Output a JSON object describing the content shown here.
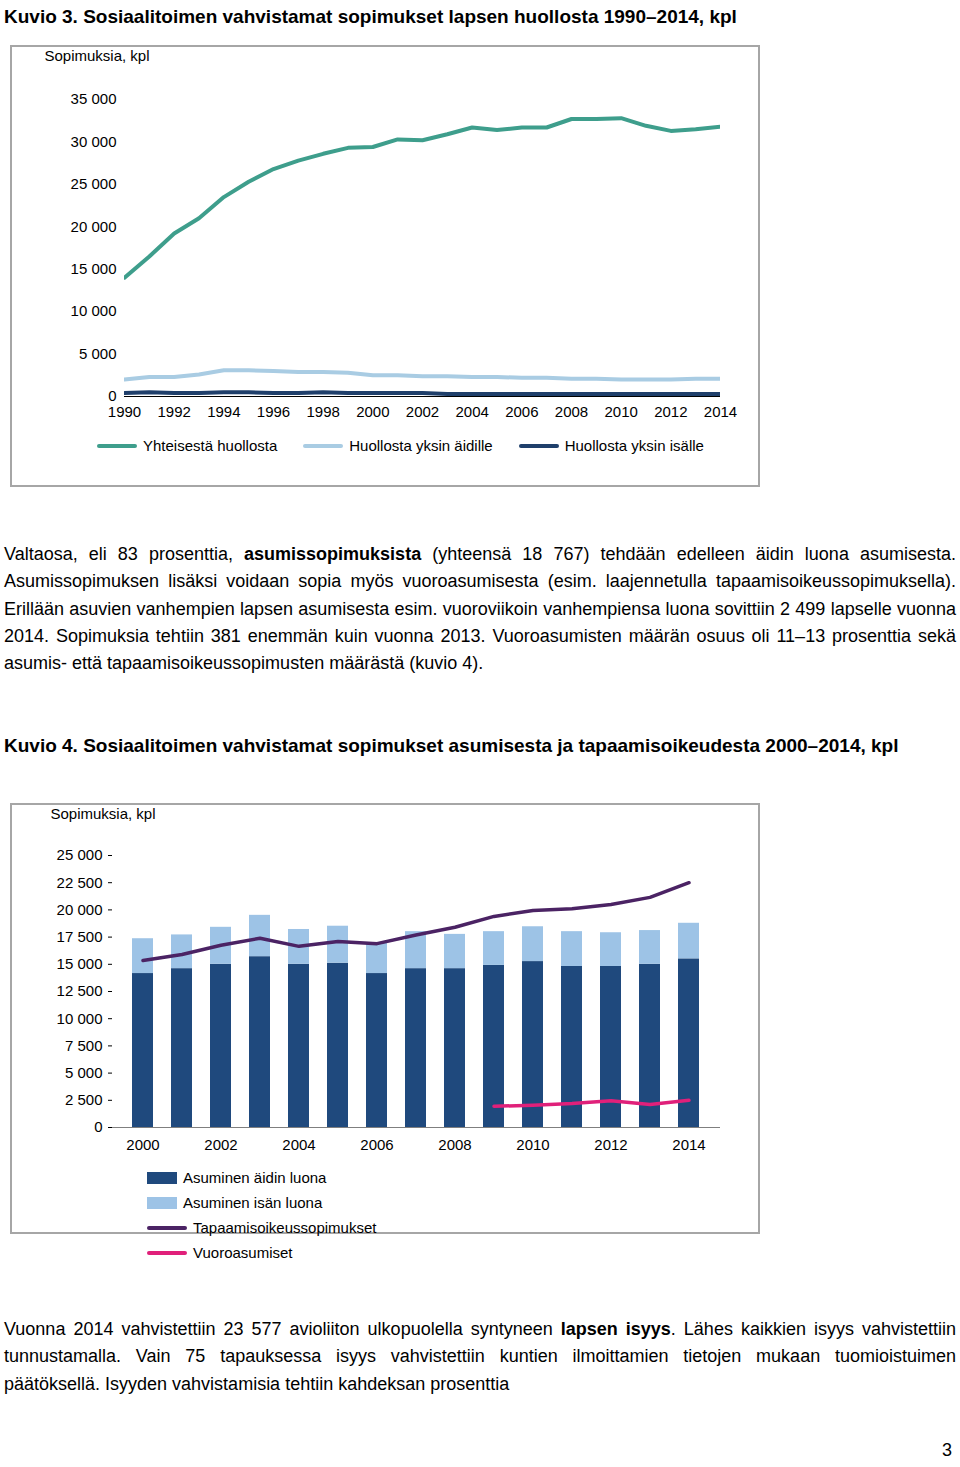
{
  "chart_data": [
    {
      "type": "line",
      "title": "Kuvio 3. Sosiaalitoimen vahvistamat sopimukset lapsen huollosta 1990–2014, kpl",
      "y_label": "Sopimuksia, kpl",
      "x": [
        1990,
        1991,
        1992,
        1993,
        1994,
        1995,
        1996,
        1997,
        1998,
        1999,
        2000,
        2001,
        2002,
        2003,
        2004,
        2005,
        2006,
        2007,
        2008,
        2009,
        2010,
        2011,
        2012,
        2013,
        2014
      ],
      "xlim": [
        1990,
        2014
      ],
      "xticks": [
        1990,
        1992,
        1994,
        1996,
        1998,
        2000,
        2002,
        2004,
        2006,
        2008,
        2010,
        2012,
        2014
      ],
      "ylim": [
        0,
        35000
      ],
      "yticks": [
        0,
        {
          "value": 5000,
          "label": "5 000"
        },
        {
          "value": 10000,
          "label": "10 000"
        },
        {
          "value": 15000,
          "label": "15 000"
        },
        {
          "value": 20000,
          "label": "20 000"
        },
        {
          "value": 25000,
          "label": "25 000"
        },
        {
          "value": 30000,
          "label": "30 000"
        },
        {
          "value": 35000,
          "label": "35 000"
        }
      ],
      "legend": "bottom",
      "series": [
        {
          "name": "Yhteisestä huollosta",
          "color": "#3e9e8c",
          "values": [
            14000,
            16500,
            19200,
            21000,
            23500,
            25300,
            26800,
            27800,
            28600,
            29300,
            29400,
            30300,
            30200,
            30900,
            31700,
            31400,
            31700,
            31700,
            32700,
            32700,
            32800,
            31900,
            31300,
            31500,
            31800
          ]
        },
        {
          "name": "Huollosta yksin äidille",
          "color": "#a9cce3",
          "values": [
            2000,
            2300,
            2300,
            2600,
            3100,
            3100,
            3000,
            2900,
            2900,
            2800,
            2500,
            2500,
            2400,
            2400,
            2300,
            2300,
            2200,
            2200,
            2100,
            2100,
            2000,
            2000,
            2000,
            2100,
            2100
          ]
        },
        {
          "name": "Huollosta yksin isälle",
          "color": "#1f3f6b",
          "values": [
            400,
            500,
            400,
            400,
            500,
            500,
            400,
            400,
            500,
            400,
            400,
            400,
            400,
            300,
            300,
            300,
            300,
            300,
            300,
            300,
            300,
            300,
            300,
            300,
            300
          ]
        }
      ]
    },
    {
      "type": "bar",
      "stacked": true,
      "title": "Kuvio 4. Sosiaalitoimen vahvistamat sopimukset asumisesta ja tapaamisoikeudesta 2000–2014, kpl",
      "y_label": "Sopimuksia, kpl",
      "categories": [
        2000,
        2001,
        2002,
        2003,
        2004,
        2005,
        2006,
        2007,
        2008,
        2009,
        2010,
        2011,
        2012,
        2013,
        2014
      ],
      "xticks": [
        2000,
        2002,
        2004,
        2006,
        2008,
        2010,
        2012,
        2014
      ],
      "ylim": [
        0,
        25000
      ],
      "yticks": [
        0,
        {
          "value": 2500,
          "label": "2 500"
        },
        {
          "value": 5000,
          "label": "5 000"
        },
        {
          "value": 7500,
          "label": "7 500"
        },
        {
          "value": 10000,
          "label": "10 000"
        },
        {
          "value": 12500,
          "label": "12 500"
        },
        {
          "value": 15000,
          "label": "15 000"
        },
        {
          "value": 17500,
          "label": "17 500"
        },
        {
          "value": 20000,
          "label": "20 000"
        },
        {
          "value": 22500,
          "label": "22 500"
        },
        {
          "value": 25000,
          "label": "25 000"
        }
      ],
      "legend": "bottom",
      "series": [
        {
          "name": "Asuminen äidin luona",
          "type": "bar",
          "color": "#1f497d",
          "values": [
            14150,
            14600,
            15000,
            15700,
            15000,
            15100,
            14150,
            14600,
            14600,
            14900,
            15250,
            14800,
            14800,
            15000,
            15500
          ]
        },
        {
          "name": "Asuminen isän luona",
          "type": "bar",
          "color": "#9dc3e6",
          "values": [
            3200,
            3100,
            3400,
            3800,
            3200,
            3400,
            2850,
            3400,
            3150,
            3100,
            3200,
            3200,
            3100,
            3100,
            3270
          ]
        },
        {
          "name": "Tapaamisoikeussopimukset",
          "type": "line",
          "color": "#4b2364",
          "values": [
            15350,
            15900,
            16750,
            17400,
            16650,
            17100,
            16900,
            17700,
            18400,
            19400,
            19950,
            20100,
            20500,
            21150,
            22500
          ]
        },
        {
          "name": "Vuoroasumiset",
          "type": "line",
          "color": "#e0207a",
          "values": [
            null,
            null,
            null,
            null,
            null,
            null,
            null,
            null,
            null,
            1950,
            2050,
            2200,
            2450,
            2118,
            2499
          ]
        }
      ]
    }
  ],
  "paragraph_1": [
    {
      "text": "Valtaosa, eli 83 prosenttia, "
    },
    {
      "text": "asumissopimuksista",
      "bold": true
    },
    {
      "text": " (yhteensä 18 767) tehdään edelleen äidin luona asumisesta. Asumissopimuksen lisäksi voidaan sopia myös vuoroasumisesta (esim. laajennetulla tapaamisoikeussopimuksella). Erillään asuvien vanhempien lapsen asumisesta esim. vuoroviikoin vanhempiensa luona sovittiin 2 499 lapselle vuonna 2014. Sopimuksia tehtiin 381 enemmän kuin vuonna 2013. Vuoroasumisten määrän osuus oli 11–13 prosenttia sekä asumis- että tapaamisoikeussopimusten määrästä (kuvio 4)."
    }
  ],
  "paragraph_2": [
    {
      "text": "Vuonna 2014 vahvistettiin 23 577 avioliiton ulkopuolella syntyneen "
    },
    {
      "text": "lapsen isyys",
      "bold": true
    },
    {
      "text": ". Lähes kaikkien isyys vahvistettiin tunnustamalla. Vain 75 tapauksessa isyys vahvistettiin kuntien ilmoittamien tietojen mukaan tuomioistuimen päätöksellä. Isyyden vahvistamisia tehtiin kahdeksan prosenttia"
    }
  ],
  "page_number": "3"
}
